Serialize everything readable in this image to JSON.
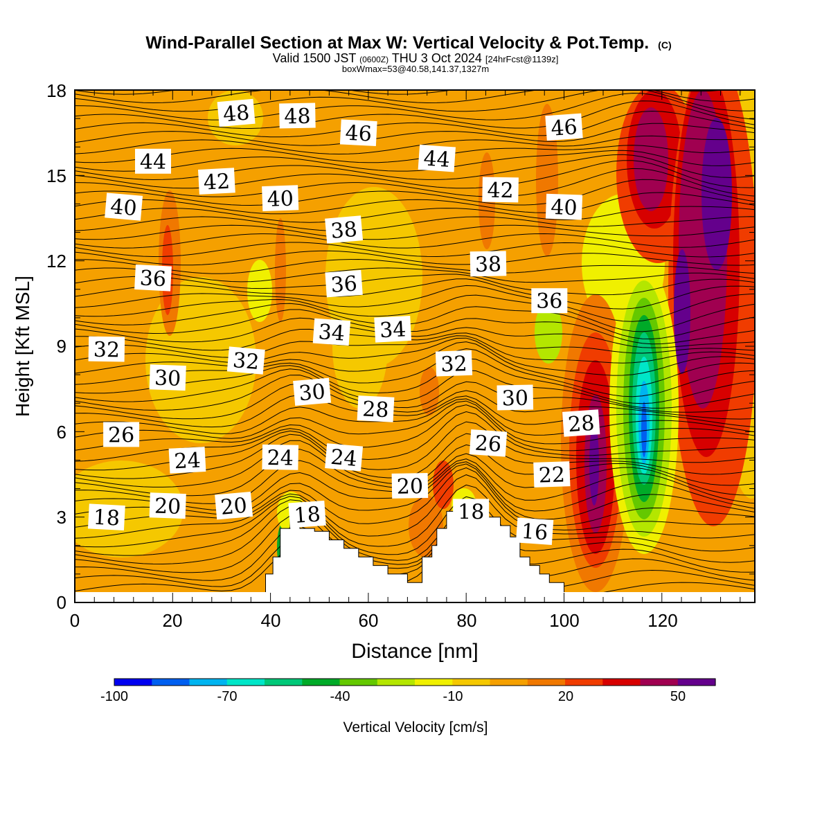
{
  "chart_data": {
    "type": "heatmap",
    "title": "Wind-Parallel Section at Max W: Vertical Velocity & Pot.Temp.",
    "title_mark": "(C)",
    "subtitle_parts": [
      "Valid 1500 JST",
      "(0600Z)",
      "THU 3 Oct 2024",
      "[24hrFcst@1139z]"
    ],
    "subtitle2": "boxWmax=53@40.58,141.37,1327m",
    "xlabel": "Distance [nm]",
    "ylabel": "Height [Kft MSL]",
    "xlim": [
      0,
      139
    ],
    "ylim": [
      0,
      18
    ],
    "x_ticks": [
      "0",
      "20",
      "40",
      "60",
      "80",
      "100",
      "120"
    ],
    "y_ticks": [
      "0",
      "3",
      "6",
      "9",
      "12",
      "15",
      "18"
    ],
    "colorbar": {
      "label": "Vertical Velocity [cm/s]",
      "tick_labels": [
        "-100",
        "-70",
        "-40",
        "-10",
        "20",
        "50"
      ],
      "colors": [
        "#0000f0",
        "#005ff0",
        "#00b4f0",
        "#00e6c8",
        "#00c878",
        "#00aa28",
        "#64c800",
        "#b4e600",
        "#f0f000",
        "#f5c800",
        "#f5a000",
        "#f07800",
        "#f03c00",
        "#d70000",
        "#a00050",
        "#64008c"
      ]
    },
    "theta_contour_labels": [
      {
        "text": "48",
        "x": 33,
        "y": 17.2
      },
      {
        "text": "48",
        "x": 45.5,
        "y": 17.1
      },
      {
        "text": "46",
        "x": 58,
        "y": 16.5
      },
      {
        "text": "46",
        "x": 100,
        "y": 16.7
      },
      {
        "text": "44",
        "x": 16,
        "y": 15.5
      },
      {
        "text": "44",
        "x": 74,
        "y": 15.6
      },
      {
        "text": "42",
        "x": 29,
        "y": 14.8
      },
      {
        "text": "42",
        "x": 87,
        "y": 14.5
      },
      {
        "text": "40",
        "x": 10,
        "y": 13.9
      },
      {
        "text": "40",
        "x": 42,
        "y": 14.2
      },
      {
        "text": "40",
        "x": 100,
        "y": 13.9
      },
      {
        "text": "38",
        "x": 55,
        "y": 13.1
      },
      {
        "text": "38",
        "x": 84.5,
        "y": 11.9
      },
      {
        "text": "36",
        "x": 16,
        "y": 11.4
      },
      {
        "text": "36",
        "x": 55,
        "y": 11.2
      },
      {
        "text": "36",
        "x": 97,
        "y": 10.6
      },
      {
        "text": "34",
        "x": 52.5,
        "y": 9.5
      },
      {
        "text": "34",
        "x": 65,
        "y": 9.6
      },
      {
        "text": "32",
        "x": 6.5,
        "y": 8.9
      },
      {
        "text": "32",
        "x": 35,
        "y": 8.5
      },
      {
        "text": "32",
        "x": 77.5,
        "y": 8.4
      },
      {
        "text": "30",
        "x": 19,
        "y": 7.9
      },
      {
        "text": "30",
        "x": 48.5,
        "y": 7.4
      },
      {
        "text": "30",
        "x": 90,
        "y": 7.2
      },
      {
        "text": "28",
        "x": 61.5,
        "y": 6.8
      },
      {
        "text": "28",
        "x": 103.5,
        "y": 6.3
      },
      {
        "text": "26",
        "x": 9.5,
        "y": 5.9
      },
      {
        "text": "26",
        "x": 84.5,
        "y": 5.6
      },
      {
        "text": "24",
        "x": 23,
        "y": 5.0
      },
      {
        "text": "24",
        "x": 42,
        "y": 5.1
      },
      {
        "text": "24",
        "x": 55,
        "y": 5.1
      },
      {
        "text": "22",
        "x": 97.5,
        "y": 4.5
      },
      {
        "text": "20",
        "x": 19,
        "y": 3.4
      },
      {
        "text": "20",
        "x": 32.5,
        "y": 3.4
      },
      {
        "text": "20",
        "x": 68.5,
        "y": 4.1
      },
      {
        "text": "18",
        "x": 6.5,
        "y": 3.0
      },
      {
        "text": "18",
        "x": 47.5,
        "y": 3.1
      },
      {
        "text": "18",
        "x": 81,
        "y": 3.2
      },
      {
        "text": "16",
        "x": 94,
        "y": 2.5
      }
    ],
    "terrain_nm_kft": [
      [
        39,
        0
      ],
      [
        39,
        1
      ],
      [
        40.5,
        1
      ],
      [
        40.5,
        1.6
      ],
      [
        42,
        1.6
      ],
      [
        42,
        2.6
      ],
      [
        44,
        2.6
      ],
      [
        44,
        3.0
      ],
      [
        46,
        3.0
      ],
      [
        46,
        2.6
      ],
      [
        49,
        2.6
      ],
      [
        49,
        2.5
      ],
      [
        52,
        2.5
      ],
      [
        52,
        2.2
      ],
      [
        55,
        2.2
      ],
      [
        55,
        1.9
      ],
      [
        58,
        1.9
      ],
      [
        58,
        1.6
      ],
      [
        61,
        1.6
      ],
      [
        61,
        1.3
      ],
      [
        64,
        1.3
      ],
      [
        64,
        1.0
      ],
      [
        68,
        1.0
      ],
      [
        68,
        0.7
      ],
      [
        71,
        0.7
      ],
      [
        71,
        1.6
      ],
      [
        73,
        1.6
      ],
      [
        73,
        2.0
      ],
      [
        74,
        2.0
      ],
      [
        74,
        2.6
      ],
      [
        76,
        2.6
      ],
      [
        76,
        3.2
      ],
      [
        84,
        3.2
      ],
      [
        84,
        3.0
      ],
      [
        87,
        3.0
      ],
      [
        87,
        2.7
      ],
      [
        89,
        2.7
      ],
      [
        89,
        2.3
      ],
      [
        91,
        2.3
      ],
      [
        91,
        1.6
      ],
      [
        93,
        1.6
      ],
      [
        93,
        1.3
      ],
      [
        95,
        1.3
      ],
      [
        95,
        1.0
      ],
      [
        97,
        1.0
      ],
      [
        97,
        0.7
      ],
      [
        100,
        0.7
      ],
      [
        100,
        0
      ]
    ]
  }
}
